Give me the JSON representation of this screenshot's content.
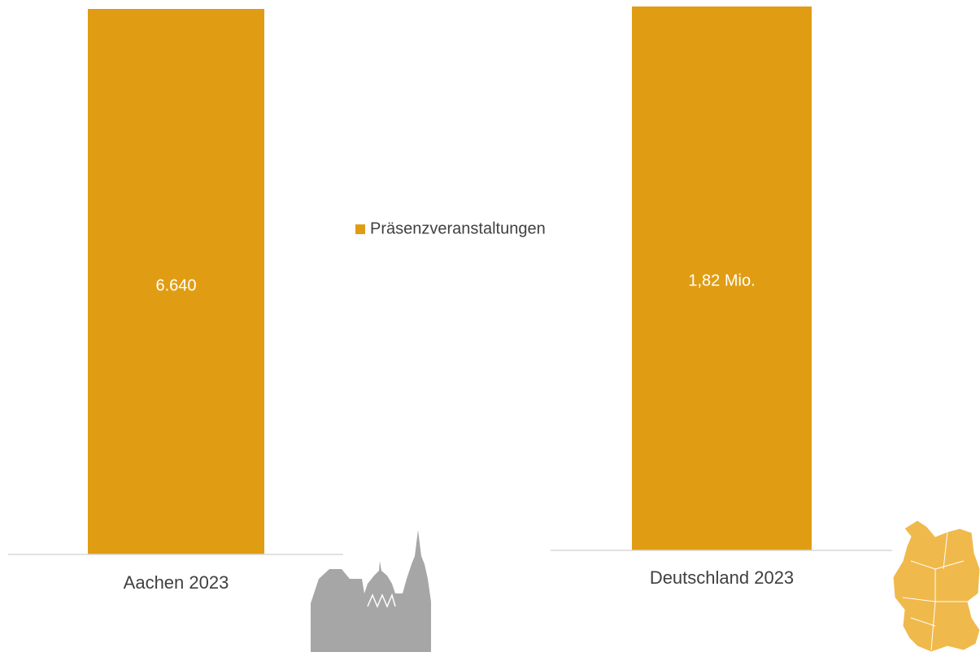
{
  "chart_data": [
    {
      "type": "bar",
      "categories": [
        "Aachen 2023"
      ],
      "series": [
        {
          "name": "Präsenzveranstaltungen",
          "color": "#e09d13",
          "values": [
            6640
          ],
          "value_labels": [
            "6.640"
          ]
        }
      ],
      "ylim": [
        0,
        6640
      ],
      "legend": "center"
    },
    {
      "type": "bar",
      "categories": [
        "Deutschland 2023"
      ],
      "series": [
        {
          "color": "#e09d13",
          "values": [
            1820000
          ],
          "value_labels": [
            "1,82 Mio."
          ]
        }
      ],
      "ylim": [
        0,
        1820000
      ]
    }
  ]
}
